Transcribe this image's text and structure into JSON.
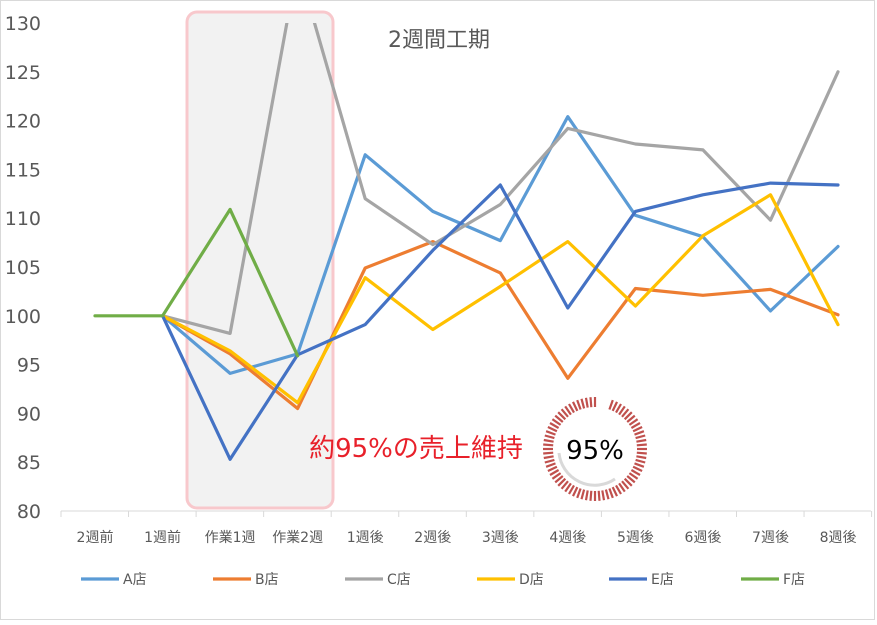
{
  "chart_data": {
    "type": "line",
    "title": "2週間工期",
    "categories": [
      "2週前",
      "1週前",
      "作業1週",
      "作業2週",
      "1週後",
      "2週後",
      "3週後",
      "4週後",
      "5週後",
      "6週後",
      "7週後",
      "8週後"
    ],
    "ylim": [
      80,
      130
    ],
    "yticks": [
      80,
      85,
      90,
      95,
      100,
      105,
      110,
      115,
      120,
      125,
      130
    ],
    "grid": false,
    "legend_position": "bottom",
    "series": [
      {
        "name": "A店",
        "color": "#5b9bd5",
        "values": [
          null,
          100,
          94.1,
          96.1,
          116.5,
          110.7,
          107.7,
          120.4,
          110.3,
          108.1,
          100.5,
          107.1
        ]
      },
      {
        "name": "B店",
        "color": "#ed7d31",
        "values": [
          null,
          100,
          96.1,
          90.5,
          104.9,
          107.6,
          104.4,
          93.6,
          102.8,
          102.1,
          102.7,
          100.1
        ]
      },
      {
        "name": "C店",
        "color": "#a5a5a5",
        "values": [
          null,
          100,
          98.2,
          136,
          112,
          107.3,
          111.4,
          119.2,
          117.6,
          117,
          109.8,
          125
        ]
      },
      {
        "name": "D店",
        "color": "#ffc000",
        "values": [
          null,
          100,
          96.4,
          91.1,
          103.9,
          98.6,
          103,
          107.6,
          101,
          108.2,
          112.4,
          99.1
        ]
      },
      {
        "name": "E店",
        "color": "#4472c4",
        "values": [
          null,
          100,
          85.3,
          96,
          99.1,
          106.7,
          113.4,
          100.8,
          110.7,
          112.4,
          113.6,
          113.4
        ]
      },
      {
        "name": "F店",
        "color": "#70ad47",
        "values": [
          100,
          100,
          110.9,
          95.9,
          null,
          null,
          null,
          null,
          null,
          null,
          null,
          null
        ]
      }
    ],
    "annotation": {
      "text": "約95%の売上維持",
      "color": "#e8202a",
      "gauge_value": 95,
      "gauge_label": "95%",
      "gauge_color": "#c0504d"
    },
    "highlight_range": [
      "作業1週",
      "作業2週"
    ]
  }
}
